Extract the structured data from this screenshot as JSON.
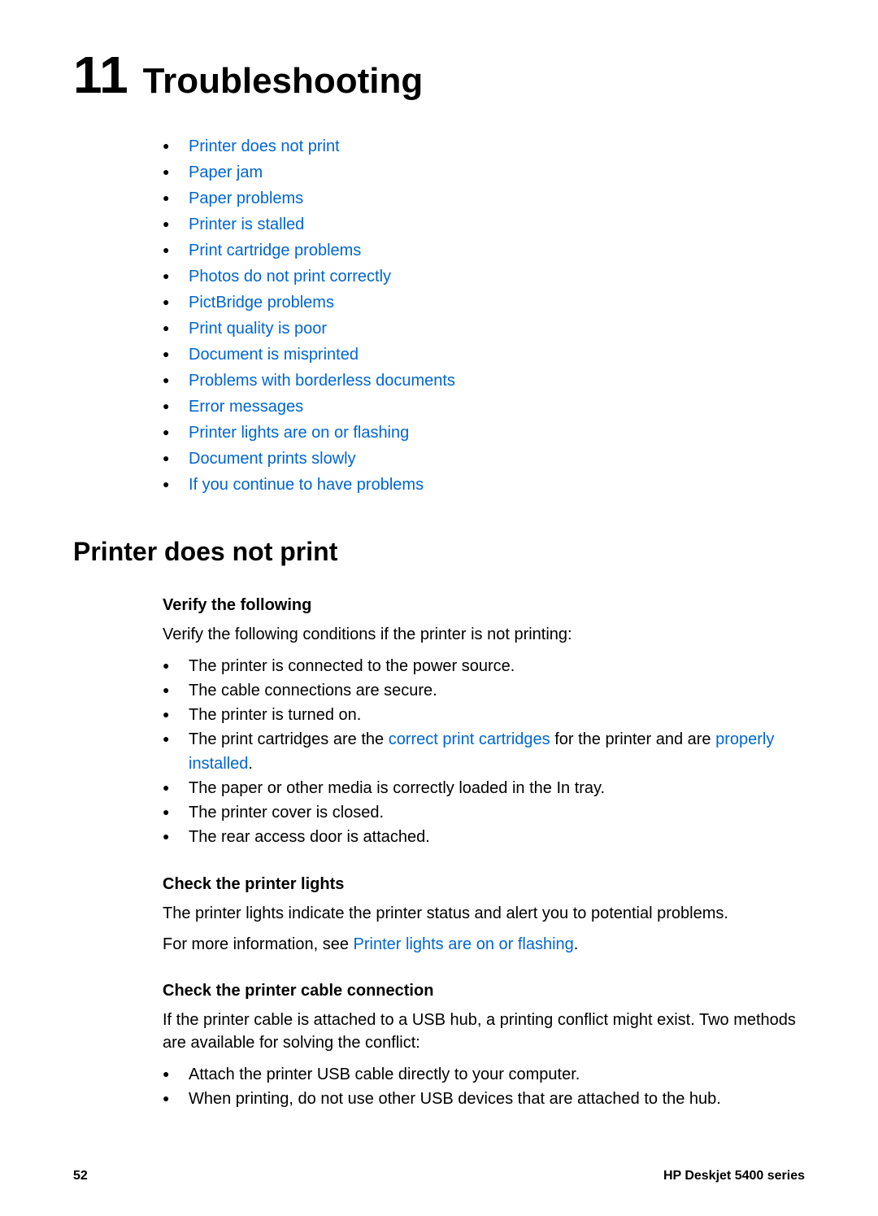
{
  "chapter": {
    "number": "11",
    "title": "Troubleshooting"
  },
  "topics": [
    "Printer does not print",
    "Paper jam",
    "Paper problems",
    "Printer is stalled",
    "Print cartridge problems",
    "Photos do not print correctly",
    "PictBridge problems",
    "Print quality is poor",
    "Document is misprinted",
    "Problems with borderless documents",
    "Error messages",
    "Printer lights are on or flashing",
    "Document prints slowly",
    "If you continue to have problems"
  ],
  "section": {
    "title": "Printer does not print",
    "verify": {
      "title": "Verify the following",
      "intro": "Verify the following conditions if the printer is not printing:",
      "items": {
        "i0": "The printer is connected to the power source.",
        "i1": "The cable connections are secure.",
        "i2": "The printer is turned on.",
        "i3_pre": "The print cartridges are the ",
        "i3_link1": "correct print cartridges",
        "i3_mid": " for the printer and are ",
        "i3_link2": "properly installed",
        "i3_post": ".",
        "i4": "The paper or other media is correctly loaded in the In tray.",
        "i5": "The printer cover is closed.",
        "i6": "The rear access door is attached."
      }
    },
    "lights": {
      "title": "Check the printer lights",
      "p1": "The printer lights indicate the printer status and alert you to potential problems.",
      "p2_pre": "For more information, see ",
      "p2_link": "Printer lights are on or flashing",
      "p2_post": "."
    },
    "cable": {
      "title": "Check the printer cable connection",
      "intro": "If the printer cable is attached to a USB hub, a printing conflict might exist. Two methods are available for solving the conflict:",
      "items": {
        "i0": "Attach the printer USB cable directly to your computer.",
        "i1": "When printing, do not use other USB devices that are attached to the hub."
      }
    }
  },
  "footer": {
    "page": "52",
    "product": "HP Deskjet 5400 series"
  },
  "colors": {
    "link": "#0066cc",
    "text": "#000000",
    "background": "#ffffff"
  },
  "typography": {
    "chapter_number_fontsize": 64,
    "chapter_title_fontsize": 44,
    "section_title_fontsize": 32,
    "body_fontsize": 20,
    "footer_fontsize": 16
  }
}
